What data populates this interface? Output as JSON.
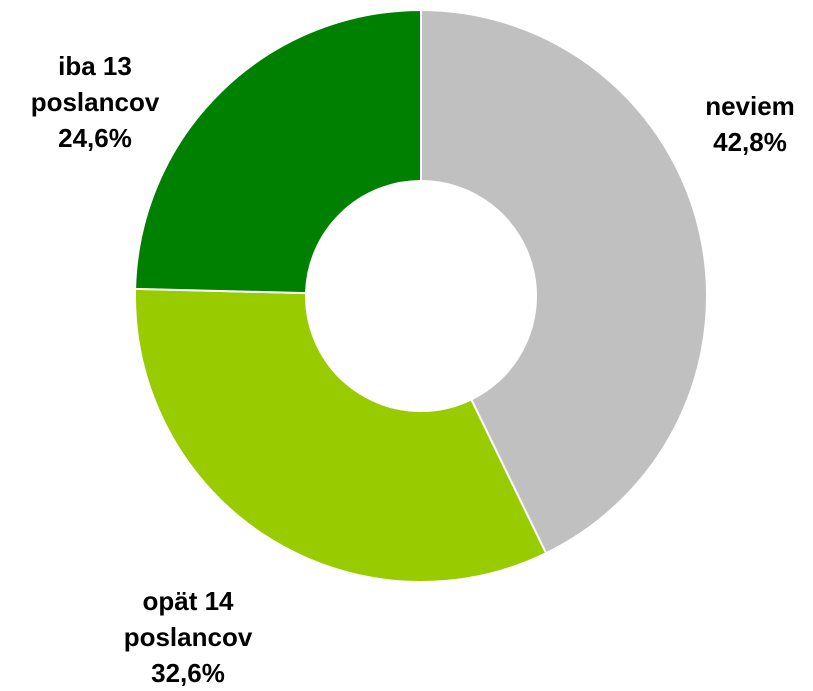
{
  "chart_data": {
    "type": "donut",
    "categories": [
      "neviem",
      "opät 14 poslancov",
      "iba 13 poslancov"
    ],
    "values": [
      42.8,
      32.6,
      24.6
    ],
    "value_labels": [
      "42,8%",
      "32,6%",
      "24,6%"
    ],
    "colors": [
      "#c0c0c0",
      "#99cc00",
      "#008000"
    ]
  }
}
